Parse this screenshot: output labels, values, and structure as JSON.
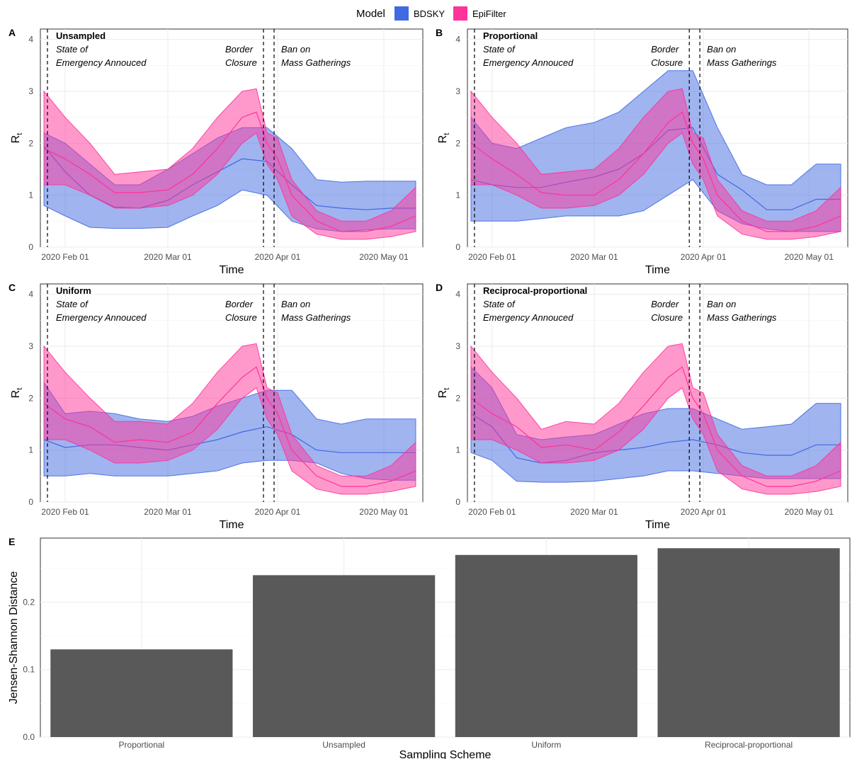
{
  "legend": {
    "title": "Model",
    "items": [
      {
        "label": "BDSKY",
        "color": "#4169E1"
      },
      {
        "label": "EpiFilter",
        "color": "#FF3399"
      }
    ]
  },
  "annotations": {
    "soe_line1": "State of",
    "soe_line2": "Emergency Annouced",
    "border_line1": "Border",
    "border_line2": "Closure",
    "ban_line1": "Ban on",
    "ban_line2": "Mass Gatherings"
  },
  "chart_data": [
    {
      "type": "area",
      "panel": "A",
      "scheme": "Unsampled",
      "xlabel": "Time",
      "ylabel": "Rt",
      "x_ticks": [
        "2020 Feb 01",
        "2020 Mar 01",
        "2020 Apr 01",
        "2020 May 01"
      ],
      "y_ticks": [
        0,
        1,
        2,
        3,
        4
      ],
      "xlim": [
        "2020-01-25",
        "2020-05-12"
      ],
      "ylim": [
        0,
        4.2
      ],
      "events": [
        "2020-01-27",
        "2020-03-28",
        "2020-03-31"
      ],
      "series": [
        {
          "name": "BDSKY",
          "color": "#4169E1",
          "x": [
            "2020-01-26",
            "2020-02-01",
            "2020-02-08",
            "2020-02-15",
            "2020-02-22",
            "2020-03-01",
            "2020-03-08",
            "2020-03-15",
            "2020-03-22",
            "2020-03-29",
            "2020-04-05",
            "2020-04-12",
            "2020-04-19",
            "2020-04-26",
            "2020-05-03",
            "2020-05-10"
          ],
          "median": [
            1.95,
            1.45,
            1.0,
            0.77,
            0.75,
            0.9,
            1.2,
            1.45,
            1.7,
            1.65,
            1.2,
            0.8,
            0.75,
            0.72,
            0.75,
            0.75
          ],
          "lower": [
            0.8,
            0.6,
            0.38,
            0.36,
            0.36,
            0.38,
            0.6,
            0.8,
            1.1,
            1.0,
            0.5,
            0.35,
            0.3,
            0.33,
            0.35,
            0.35
          ],
          "upper": [
            2.2,
            2.0,
            1.6,
            1.2,
            1.2,
            1.5,
            1.8,
            2.1,
            2.3,
            2.3,
            1.9,
            1.3,
            1.25,
            1.27,
            1.27,
            1.27
          ]
        },
        {
          "name": "EpiFilter",
          "color": "#FF3399",
          "x": [
            "2020-01-26",
            "2020-02-01",
            "2020-02-08",
            "2020-02-15",
            "2020-02-22",
            "2020-03-01",
            "2020-03-08",
            "2020-03-15",
            "2020-03-22",
            "2020-03-26",
            "2020-03-29",
            "2020-04-01",
            "2020-04-05",
            "2020-04-12",
            "2020-04-19",
            "2020-04-26",
            "2020-05-03",
            "2020-05-10"
          ],
          "median": [
            1.9,
            1.7,
            1.4,
            1.05,
            1.05,
            1.1,
            1.4,
            1.9,
            2.5,
            2.6,
            2.0,
            1.7,
            1.0,
            0.5,
            0.3,
            0.3,
            0.4,
            0.6
          ],
          "lower": [
            1.2,
            1.2,
            1.0,
            0.75,
            0.75,
            0.8,
            1.0,
            1.4,
            2.0,
            2.2,
            1.6,
            1.3,
            0.6,
            0.25,
            0.15,
            0.15,
            0.2,
            0.3
          ],
          "upper": [
            3.0,
            2.5,
            2.0,
            1.4,
            1.45,
            1.5,
            1.9,
            2.5,
            3.0,
            3.05,
            2.2,
            2.1,
            1.3,
            0.7,
            0.5,
            0.5,
            0.7,
            1.15
          ]
        }
      ]
    },
    {
      "type": "area",
      "panel": "B",
      "scheme": "Proportional",
      "xlabel": "Time",
      "ylabel": "Rt",
      "x_ticks": [
        "2020 Feb 01",
        "2020 Mar 01",
        "2020 Apr 01",
        "2020 May 01"
      ],
      "y_ticks": [
        0,
        1,
        2,
        3,
        4
      ],
      "xlim": [
        "2020-01-25",
        "2020-05-12"
      ],
      "ylim": [
        0,
        4.2
      ],
      "events": [
        "2020-01-27",
        "2020-03-28",
        "2020-03-31"
      ],
      "series": [
        {
          "name": "BDSKY",
          "color": "#4169E1",
          "x": [
            "2020-01-26",
            "2020-02-01",
            "2020-02-08",
            "2020-02-15",
            "2020-02-22",
            "2020-03-01",
            "2020-03-08",
            "2020-03-15",
            "2020-03-22",
            "2020-03-29",
            "2020-04-05",
            "2020-04-12",
            "2020-04-19",
            "2020-04-26",
            "2020-05-03",
            "2020-05-10"
          ],
          "median": [
            1.3,
            1.2,
            1.15,
            1.15,
            1.25,
            1.35,
            1.5,
            1.8,
            2.25,
            2.3,
            1.4,
            1.1,
            0.72,
            0.72,
            0.92,
            0.92
          ],
          "lower": [
            0.5,
            0.5,
            0.5,
            0.55,
            0.6,
            0.6,
            0.6,
            0.7,
            1.0,
            1.3,
            0.7,
            0.45,
            0.35,
            0.3,
            0.3,
            0.3
          ],
          "upper": [
            2.5,
            2.0,
            1.9,
            2.1,
            2.3,
            2.4,
            2.6,
            3.0,
            3.4,
            3.4,
            2.3,
            1.4,
            1.2,
            1.2,
            1.6,
            1.6
          ]
        },
        {
          "name": "EpiFilter",
          "color": "#FF3399",
          "x": [
            "2020-01-26",
            "2020-02-01",
            "2020-02-08",
            "2020-02-15",
            "2020-02-22",
            "2020-03-01",
            "2020-03-08",
            "2020-03-15",
            "2020-03-22",
            "2020-03-26",
            "2020-03-29",
            "2020-04-01",
            "2020-04-05",
            "2020-04-12",
            "2020-04-19",
            "2020-04-26",
            "2020-05-03",
            "2020-05-10"
          ],
          "median": [
            2.0,
            1.7,
            1.4,
            1.05,
            1.0,
            1.0,
            1.3,
            1.8,
            2.4,
            2.6,
            2.0,
            1.7,
            1.0,
            0.5,
            0.3,
            0.3,
            0.4,
            0.6
          ],
          "lower": [
            1.2,
            1.2,
            1.0,
            0.75,
            0.75,
            0.8,
            1.0,
            1.4,
            2.0,
            2.2,
            1.6,
            1.3,
            0.6,
            0.25,
            0.15,
            0.15,
            0.2,
            0.3
          ],
          "upper": [
            3.0,
            2.5,
            2.0,
            1.4,
            1.45,
            1.5,
            1.9,
            2.5,
            3.0,
            3.05,
            2.2,
            2.1,
            1.3,
            0.7,
            0.5,
            0.5,
            0.7,
            1.15
          ]
        }
      ]
    },
    {
      "type": "area",
      "panel": "C",
      "scheme": "Uniform",
      "xlabel": "Time",
      "ylabel": "Rt",
      "x_ticks": [
        "2020 Feb 01",
        "2020 Mar 01",
        "2020 Apr 01",
        "2020 May 01"
      ],
      "y_ticks": [
        0,
        1,
        2,
        3,
        4
      ],
      "xlim": [
        "2020-01-25",
        "2020-05-12"
      ],
      "ylim": [
        0,
        4.2
      ],
      "events": [
        "2020-01-27",
        "2020-03-28",
        "2020-03-31"
      ],
      "series": [
        {
          "name": "BDSKY",
          "color": "#4169E1",
          "x": [
            "2020-01-26",
            "2020-02-01",
            "2020-02-08",
            "2020-02-15",
            "2020-02-22",
            "2020-03-01",
            "2020-03-08",
            "2020-03-15",
            "2020-03-22",
            "2020-03-29",
            "2020-04-05",
            "2020-04-12",
            "2020-04-19",
            "2020-04-26",
            "2020-05-03",
            "2020-05-10"
          ],
          "median": [
            1.2,
            1.05,
            1.1,
            1.1,
            1.05,
            1.0,
            1.1,
            1.2,
            1.35,
            1.45,
            1.3,
            1.0,
            0.95,
            0.95,
            0.95,
            0.95
          ],
          "lower": [
            0.5,
            0.5,
            0.55,
            0.5,
            0.5,
            0.5,
            0.55,
            0.6,
            0.75,
            0.8,
            0.8,
            0.75,
            0.55,
            0.45,
            0.42,
            0.42
          ],
          "upper": [
            2.3,
            1.7,
            1.75,
            1.7,
            1.6,
            1.55,
            1.65,
            1.85,
            2.0,
            2.15,
            2.15,
            1.6,
            1.5,
            1.6,
            1.6,
            1.6
          ]
        },
        {
          "name": "EpiFilter",
          "color": "#FF3399",
          "x": [
            "2020-01-26",
            "2020-02-01",
            "2020-02-08",
            "2020-02-15",
            "2020-02-22",
            "2020-03-01",
            "2020-03-08",
            "2020-03-15",
            "2020-03-22",
            "2020-03-26",
            "2020-03-29",
            "2020-04-01",
            "2020-04-05",
            "2020-04-12",
            "2020-04-19",
            "2020-04-26",
            "2020-05-03",
            "2020-05-10"
          ],
          "median": [
            1.9,
            1.6,
            1.45,
            1.15,
            1.2,
            1.15,
            1.35,
            1.9,
            2.4,
            2.6,
            2.0,
            1.7,
            1.0,
            0.5,
            0.3,
            0.3,
            0.4,
            0.6
          ],
          "lower": [
            1.2,
            1.2,
            1.0,
            0.75,
            0.75,
            0.8,
            1.0,
            1.4,
            2.0,
            2.2,
            1.6,
            1.3,
            0.6,
            0.25,
            0.15,
            0.15,
            0.2,
            0.3
          ],
          "upper": [
            3.0,
            2.5,
            2.0,
            1.55,
            1.55,
            1.5,
            1.9,
            2.5,
            3.0,
            3.05,
            2.2,
            2.1,
            1.3,
            0.7,
            0.5,
            0.5,
            0.7,
            1.15
          ]
        }
      ]
    },
    {
      "type": "area",
      "panel": "D",
      "scheme": "Reciprocal-proportional",
      "xlabel": "Time",
      "ylabel": "Rt",
      "x_ticks": [
        "2020 Feb 01",
        "2020 Mar 01",
        "2020 Apr 01",
        "2020 May 01"
      ],
      "y_ticks": [
        0,
        1,
        2,
        3,
        4
      ],
      "xlim": [
        "2020-01-25",
        "2020-05-12"
      ],
      "ylim": [
        0,
        4.2
      ],
      "events": [
        "2020-01-27",
        "2020-03-28",
        "2020-03-31"
      ],
      "series": [
        {
          "name": "BDSKY",
          "color": "#4169E1",
          "x": [
            "2020-01-26",
            "2020-02-01",
            "2020-02-08",
            "2020-02-15",
            "2020-02-22",
            "2020-03-01",
            "2020-03-08",
            "2020-03-15",
            "2020-03-22",
            "2020-03-29",
            "2020-04-05",
            "2020-04-12",
            "2020-04-19",
            "2020-04-26",
            "2020-05-03",
            "2020-05-10"
          ],
          "median": [
            1.7,
            1.45,
            0.85,
            0.75,
            0.8,
            0.95,
            1.0,
            1.05,
            1.15,
            1.2,
            1.1,
            0.95,
            0.9,
            0.9,
            1.1,
            1.1
          ],
          "lower": [
            0.95,
            0.8,
            0.4,
            0.38,
            0.38,
            0.4,
            0.45,
            0.5,
            0.6,
            0.6,
            0.55,
            0.5,
            0.45,
            0.45,
            0.45,
            0.45
          ],
          "upper": [
            2.6,
            2.2,
            1.3,
            1.2,
            1.25,
            1.3,
            1.5,
            1.7,
            1.8,
            1.8,
            1.6,
            1.4,
            1.45,
            1.5,
            1.9,
            1.9
          ]
        },
        {
          "name": "EpiFilter",
          "color": "#FF3399",
          "x": [
            "2020-01-26",
            "2020-02-01",
            "2020-02-08",
            "2020-02-15",
            "2020-02-22",
            "2020-03-01",
            "2020-03-08",
            "2020-03-15",
            "2020-03-22",
            "2020-03-26",
            "2020-03-29",
            "2020-04-01",
            "2020-04-05",
            "2020-04-12",
            "2020-04-19",
            "2020-04-26",
            "2020-05-03",
            "2020-05-10"
          ],
          "median": [
            2.0,
            1.7,
            1.45,
            1.05,
            1.1,
            1.0,
            1.35,
            1.85,
            2.4,
            2.6,
            2.0,
            1.7,
            1.0,
            0.5,
            0.3,
            0.3,
            0.4,
            0.6
          ],
          "lower": [
            1.2,
            1.2,
            1.0,
            0.75,
            0.75,
            0.8,
            1.0,
            1.4,
            2.0,
            2.2,
            1.6,
            1.3,
            0.6,
            0.25,
            0.15,
            0.15,
            0.2,
            0.3
          ],
          "upper": [
            3.0,
            2.5,
            2.0,
            1.4,
            1.55,
            1.5,
            1.9,
            2.5,
            3.0,
            3.05,
            2.2,
            2.1,
            1.3,
            0.7,
            0.5,
            0.5,
            0.7,
            1.15
          ]
        }
      ]
    },
    {
      "type": "bar",
      "panel": "E",
      "categories": [
        "Proportional",
        "Unsampled",
        "Uniform",
        "Reciprocal-proportional"
      ],
      "values": [
        0.13,
        0.24,
        0.27,
        0.28
      ],
      "xlabel": "Sampling Scheme",
      "ylabel": "Jensen-Shannon Distance",
      "y_ticks": [
        "0.0",
        "0.1",
        "0.2"
      ],
      "ylim": [
        0,
        0.295
      ],
      "bar_color": "#595959"
    }
  ]
}
